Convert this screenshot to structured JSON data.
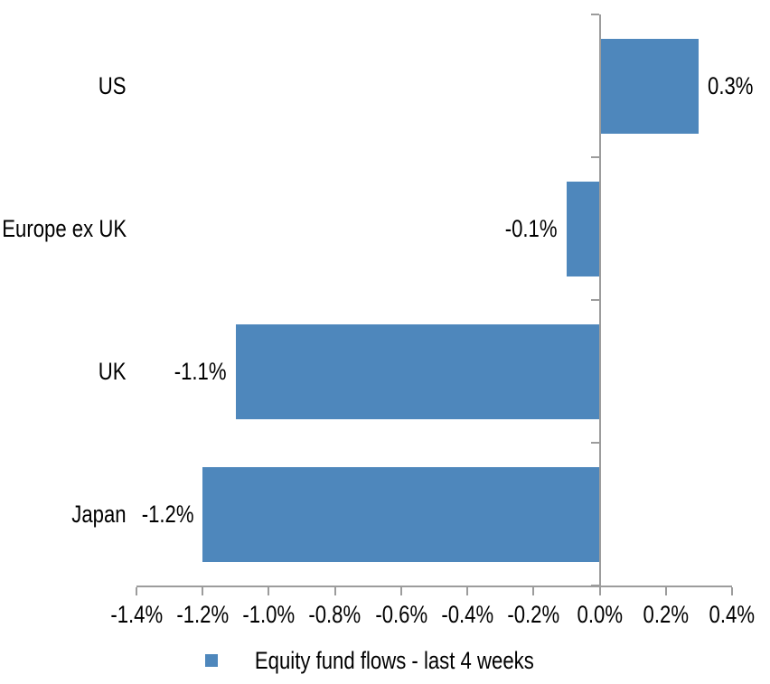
{
  "chart_data": {
    "type": "bar",
    "orientation": "horizontal",
    "title": "",
    "xlabel": "",
    "ylabel": "",
    "categories": [
      "US",
      "Europe ex UK",
      "UK",
      "Japan"
    ],
    "series": [
      {
        "name": "Equity fund flows - last 4 weeks",
        "values": [
          0.3,
          -0.1,
          -1.1,
          -1.2
        ],
        "data_labels": [
          "0.3%",
          "-0.1%",
          "-1.1%",
          "-1.2%"
        ],
        "color": "#4E87BC"
      }
    ],
    "x_axis": {
      "min": -1.4,
      "max": 0.4,
      "step": 0.2,
      "tick_labels": [
        "-1.4%",
        "-1.2%",
        "-1.0%",
        "-0.8%",
        "-0.6%",
        "-0.4%",
        "-0.2%",
        "0.0%",
        "0.2%",
        "0.4%"
      ],
      "format": "percent"
    },
    "grid": false,
    "legend": {
      "position": "bottom",
      "entries": [
        {
          "label": "Equity fund flows - last 4 weeks",
          "color": "#4E87BC"
        }
      ]
    },
    "colors": {
      "bar": "#4E87BC",
      "axis_line": "#9C9C9C",
      "text": "#000000",
      "background": "#FFFFFF"
    }
  }
}
